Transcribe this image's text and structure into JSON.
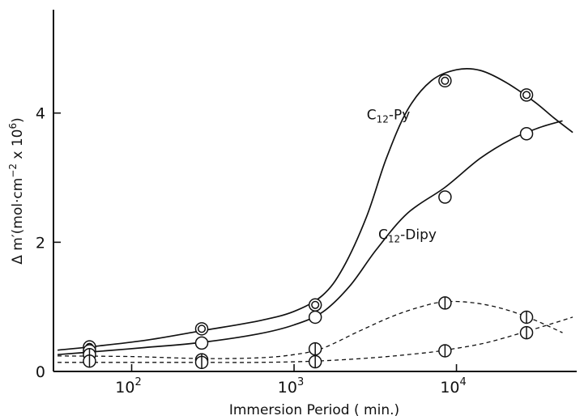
{
  "chart_data": {
    "type": "line",
    "x_scale": "log",
    "x_ticks": [
      {
        "value": 100,
        "base": "10",
        "exp": "2"
      },
      {
        "value": 1000,
        "base": "10",
        "exp": "3"
      },
      {
        "value": 10000,
        "base": "10",
        "exp": "4"
      }
    ],
    "y_ticks": [
      "0",
      "2",
      "4"
    ],
    "xlabel": "Immersion  Period ( min.)",
    "ylabel_parts": {
      "main": "Δ m′(mol·cm",
      "sup1": "−2",
      "mid": " x 10",
      "sup2": "6",
      "end": ")"
    },
    "xlim": [
      33,
      55000
    ],
    "ylim": [
      0,
      5.6
    ],
    "grid": false,
    "series": [
      {
        "name": "C12-Py",
        "line_style": "solid",
        "marker": "double-circle",
        "points": [
          [
            55,
            0.38
          ],
          [
            270,
            0.66
          ],
          [
            1350,
            1.03
          ],
          [
            8500,
            4.5
          ],
          [
            27000,
            4.28
          ]
        ],
        "curve": [
          [
            35,
            0.33
          ],
          [
            55,
            0.38
          ],
          [
            120,
            0.48
          ],
          [
            270,
            0.63
          ],
          [
            600,
            0.78
          ],
          [
            1000,
            0.93
          ],
          [
            1500,
            1.18
          ],
          [
            2000,
            1.6
          ],
          [
            2800,
            2.4
          ],
          [
            3700,
            3.3
          ],
          [
            5000,
            4.05
          ],
          [
            7000,
            4.5
          ],
          [
            10000,
            4.67
          ],
          [
            14000,
            4.66
          ],
          [
            20000,
            4.48
          ],
          [
            30000,
            4.18
          ],
          [
            40000,
            3.92
          ],
          [
            52000,
            3.7
          ]
        ]
      },
      {
        "name": "C12-Dipy",
        "line_style": "solid",
        "marker": "open-circle",
        "points": [
          [
            55,
            0.32
          ],
          [
            270,
            0.44
          ],
          [
            1350,
            0.84
          ],
          [
            8500,
            2.7
          ],
          [
            27000,
            3.68
          ]
        ],
        "curve": [
          [
            35,
            0.26
          ],
          [
            55,
            0.3
          ],
          [
            120,
            0.37
          ],
          [
            270,
            0.45
          ],
          [
            600,
            0.58
          ],
          [
            1000,
            0.72
          ],
          [
            1500,
            0.92
          ],
          [
            2200,
            1.32
          ],
          [
            3200,
            1.88
          ],
          [
            5000,
            2.45
          ],
          [
            8500,
            2.85
          ],
          [
            14000,
            3.3
          ],
          [
            22000,
            3.6
          ],
          [
            32000,
            3.77
          ],
          [
            45000,
            3.88
          ]
        ]
      },
      {
        "name": "",
        "line_style": "dashed",
        "marker": "circle-with-bar",
        "points": [
          [
            55,
            0.26
          ],
          [
            270,
            0.18
          ],
          [
            1350,
            0.35
          ],
          [
            8500,
            1.06
          ],
          [
            27000,
            0.84
          ]
        ],
        "curve": [
          [
            35,
            0.24
          ],
          [
            100,
            0.23
          ],
          [
            270,
            0.2
          ],
          [
            600,
            0.21
          ],
          [
            1000,
            0.26
          ],
          [
            1500,
            0.36
          ],
          [
            2500,
            0.62
          ],
          [
            4000,
            0.85
          ],
          [
            6000,
            1.0
          ],
          [
            8500,
            1.08
          ],
          [
            13000,
            1.06
          ],
          [
            20000,
            0.96
          ],
          [
            30000,
            0.8
          ],
          [
            45000,
            0.6
          ]
        ]
      },
      {
        "name": "",
        "line_style": "dashed",
        "marker": "circle-with-bar",
        "points": [
          [
            55,
            0.16
          ],
          [
            270,
            0.14
          ],
          [
            1350,
            0.15
          ],
          [
            8500,
            0.32
          ],
          [
            27000,
            0.6
          ]
        ],
        "curve": [
          [
            35,
            0.14
          ],
          [
            100,
            0.14
          ],
          [
            270,
            0.14
          ],
          [
            600,
            0.14
          ],
          [
            1350,
            0.16
          ],
          [
            3000,
            0.21
          ],
          [
            6000,
            0.28
          ],
          [
            8500,
            0.33
          ],
          [
            15000,
            0.44
          ],
          [
            27000,
            0.62
          ],
          [
            52000,
            0.84
          ]
        ]
      }
    ],
    "annotations": [
      {
        "base": "C",
        "sub": "12",
        "rest": "-Py",
        "x": 2800,
        "y": 3.9
      },
      {
        "base": "C",
        "sub": "12",
        "rest": "-Dipy",
        "x": 3300,
        "y": 2.05
      }
    ]
  }
}
